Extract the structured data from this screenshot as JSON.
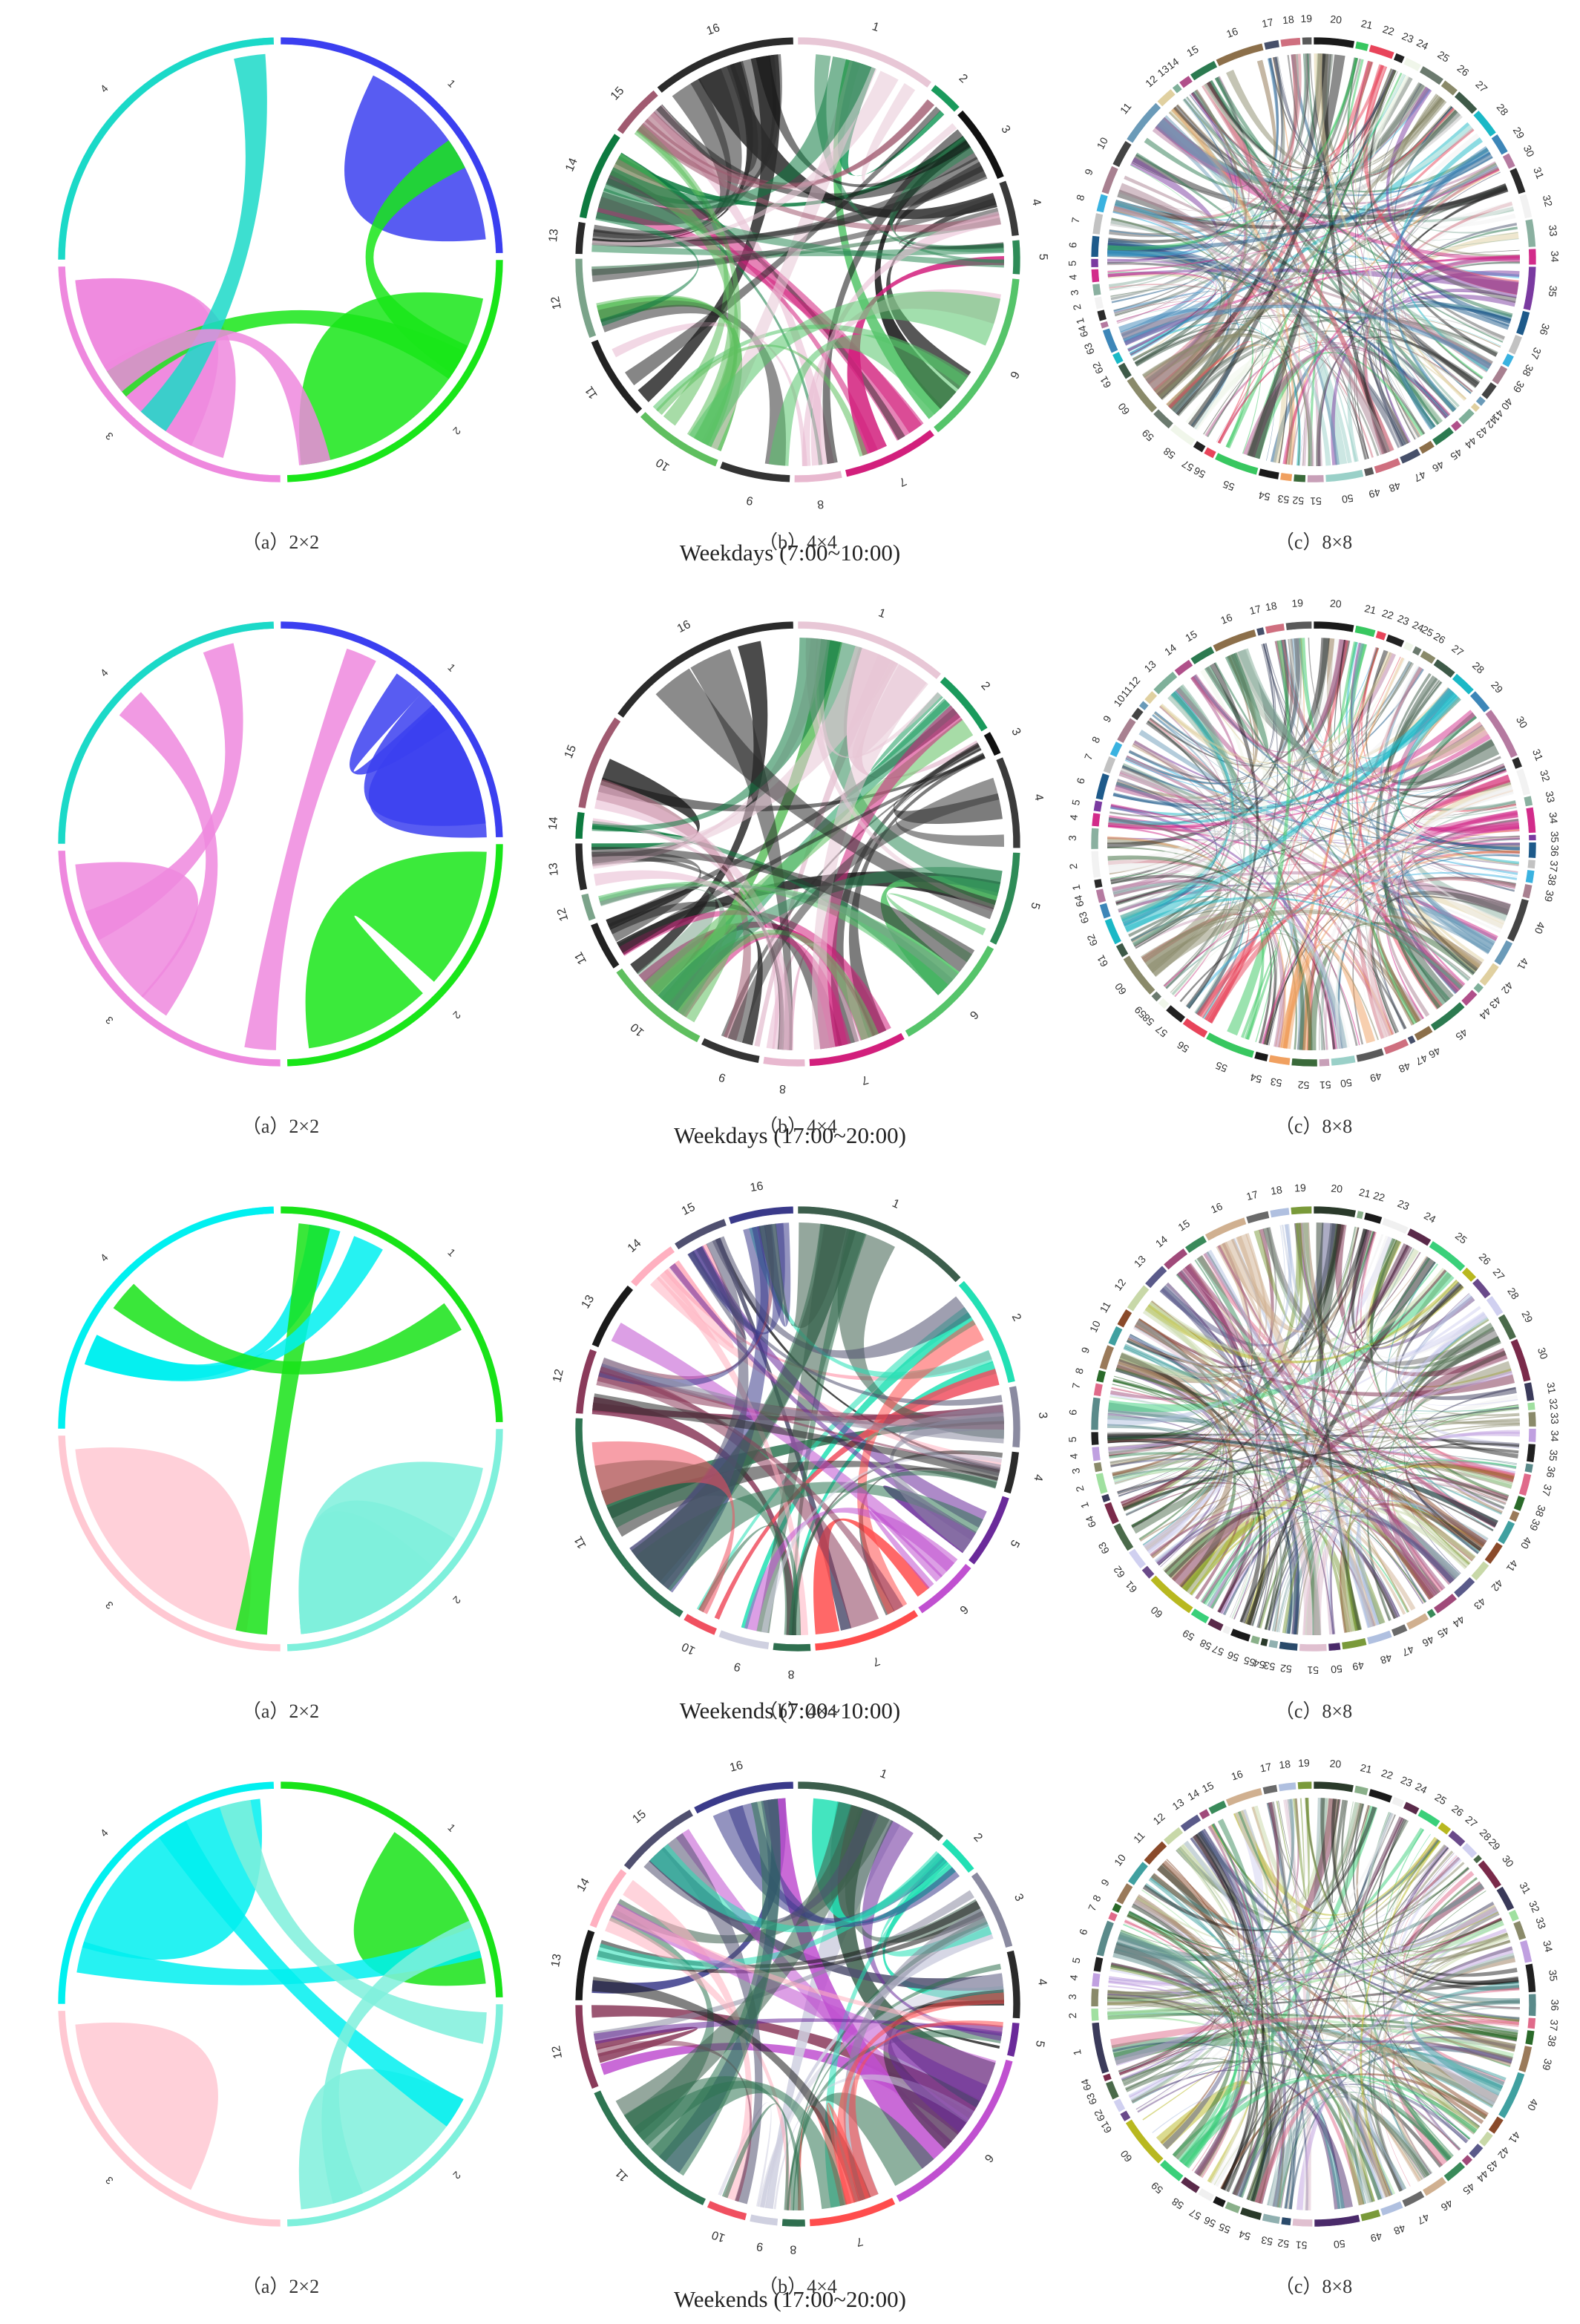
{
  "figure": {
    "rows": [
      {
        "title": "Weekdays (7:00~10:00)",
        "panels": [
          {
            "caption": "（a）2×2",
            "type": "chord",
            "segments": [
              "1",
              "2",
              "3",
              "4"
            ],
            "colors": [
              "#3b3ff0",
              "#19e619",
              "#ee88de",
              "#1bd9c8"
            ]
          },
          {
            "caption": "（b）4×4",
            "type": "chord",
            "segments": [
              "1",
              "2",
              "3",
              "4",
              "5",
              "6",
              "7",
              "8",
              "9",
              "10",
              "11",
              "12",
              "13",
              "14",
              "15",
              "16"
            ],
            "colors": [
              "#e8c7d6",
              "#1a9a5c",
              "#111111",
              "#3a3a3a",
              "#2e8b57",
              "#55c46a",
              "#d21f7c",
              "#e8b8cf",
              "#333333",
              "#5fbf5f",
              "#222222",
              "#7ba38a",
              "#2a2a2a",
              "#0d7a3f",
              "#a05a70",
              "#2b2b2b"
            ]
          },
          {
            "caption": "（c）8×8",
            "type": "chord",
            "segments": [
              "20",
              "21",
              "22",
              "23",
              "24",
              "25",
              "26",
              "27",
              "28",
              "29",
              "30",
              "31",
              "32",
              "33",
              "34",
              "35",
              "36",
              "37",
              "38",
              "39",
              "40",
              "41",
              "42",
              "43",
              "44",
              "45",
              "46",
              "47",
              "48",
              "49",
              "50",
              "51",
              "52",
              "53",
              "54",
              "55",
              "56",
              "57",
              "58",
              "59",
              "60",
              "61",
              "62",
              "63",
              "64",
              "1",
              "2",
              "3",
              "4",
              "5",
              "6",
              "7",
              "8",
              "9",
              "10",
              "11",
              "12",
              "13",
              "14",
              "15",
              "16",
              "17",
              "18",
              "19"
            ],
            "colors": [
              "#1a1a1a",
              "#38c760",
              "#e8445a",
              "#222222",
              "#f0f6ea",
              "#6b7a6e",
              "#8a8a6a",
              "#3e5a48",
              "#1ab8c6",
              "#3d86b8",
              "#b57aa0",
              "#2a2a2a",
              "#f2f2f2",
              "#8ab0a0",
              "#d22b8a",
              "#7a3aa0",
              "#1e5a8a",
              "#c2c2c2",
              "#3ab2e0",
              "#a88090",
              "#444444",
              "#6a9ab8",
              "#e0d0a0",
              "#7fb09a",
              "#b0508a",
              "#2c7a50",
              "#8c6f4a",
              "#47506a",
              "#cf6f7f",
              "#5a5a5a",
              "#9ad0c8",
              "#c8a0b8",
              "#3a6a3a",
              "#f0a060"
            ]
          }
        ]
      },
      {
        "title": "Weekdays (17:00~20:00)",
        "panels": [
          {
            "caption": "（a）2×2",
            "type": "chord",
            "segments": [
              "1",
              "2",
              "3",
              "4"
            ],
            "colors": [
              "#3b3ff0",
              "#19e619",
              "#ee88de",
              "#1bd9c8"
            ]
          },
          {
            "caption": "（b）4×4",
            "type": "chord",
            "segments": [
              "1",
              "2",
              "3",
              "4",
              "5",
              "6",
              "7",
              "8",
              "9",
              "10",
              "11",
              "12",
              "13",
              "14",
              "15",
              "16"
            ],
            "colors": [
              "#e8c7d6",
              "#1a9a5c",
              "#111111",
              "#3a3a3a",
              "#2e8b57",
              "#55c46a",
              "#d21f7c",
              "#e8b8cf",
              "#333333",
              "#5fbf5f",
              "#222222",
              "#7ba38a",
              "#2a2a2a",
              "#0d7a3f",
              "#a05a70",
              "#2b2b2b"
            ]
          },
          {
            "caption": "（c）8×8",
            "type": "chord",
            "segments": [
              "20",
              "21",
              "22",
              "23",
              "24",
              "25",
              "26",
              "27",
              "28",
              "29",
              "30",
              "31",
              "32",
              "33",
              "34",
              "35",
              "36",
              "37",
              "38",
              "39",
              "40",
              "41",
              "42",
              "43",
              "44",
              "45",
              "46",
              "47",
              "48",
              "49",
              "50",
              "51",
              "52",
              "53",
              "54",
              "55",
              "56",
              "57",
              "58",
              "59",
              "60",
              "61",
              "62",
              "63",
              "64",
              "1",
              "2",
              "3",
              "4",
              "5",
              "6",
              "7",
              "8",
              "9",
              "10",
              "11",
              "12",
              "13",
              "14",
              "15",
              "16",
              "17",
              "18",
              "19"
            ],
            "colors": [
              "#1a1a1a",
              "#38c760",
              "#e8445a",
              "#222222",
              "#f0f6ea",
              "#6b7a6e",
              "#8a8a6a",
              "#3e5a48",
              "#1ab8c6",
              "#3d86b8",
              "#b57aa0",
              "#2a2a2a",
              "#f2f2f2",
              "#8ab0a0",
              "#d22b8a",
              "#7a3aa0",
              "#1e5a8a",
              "#c2c2c2",
              "#3ab2e0",
              "#a88090",
              "#444444",
              "#6a9ab8",
              "#e0d0a0",
              "#7fb09a",
              "#b0508a",
              "#2c7a50",
              "#8c6f4a",
              "#47506a",
              "#cf6f7f",
              "#5a5a5a",
              "#9ad0c8",
              "#c8a0b8",
              "#3a6a3a",
              "#f0a060"
            ]
          }
        ]
      },
      {
        "title": "Weekends (7:00~10:00)",
        "panels": [
          {
            "caption": "（a）2×2",
            "type": "chord",
            "segments": [
              "1",
              "2",
              "3",
              "4"
            ],
            "colors": [
              "#18e318",
              "#7ff0dc",
              "#ffc8d2",
              "#00f0f0"
            ]
          },
          {
            "caption": "（b）4×4",
            "type": "chord",
            "segments": [
              "1",
              "2",
              "3",
              "4",
              "5",
              "6",
              "7",
              "8",
              "9",
              "10",
              "11",
              "12",
              "13",
              "14",
              "15",
              "16"
            ],
            "colors": [
              "#3c5e4c",
              "#22e0b4",
              "#8a8aa0",
              "#2a2a2a",
              "#6a2a9a",
              "#c050d0",
              "#ff4d4d",
              "#2f6f4f",
              "#cfd0e0",
              "#f05060",
              "#2e7552",
              "#8a3a5a",
              "#1a1a1a",
              "#ffb0c0",
              "#505070",
              "#3a3a8a"
            ]
          },
          {
            "caption": "（c）8×8",
            "type": "chord",
            "segments": [
              "20",
              "21",
              "22",
              "23",
              "24",
              "25",
              "26",
              "27",
              "28",
              "29",
              "30",
              "31",
              "32",
              "33",
              "34",
              "35",
              "36",
              "37",
              "38",
              "39",
              "40",
              "41",
              "42",
              "43",
              "44",
              "45",
              "46",
              "47",
              "48",
              "49",
              "50",
              "51",
              "52",
              "53",
              "54",
              "55",
              "56",
              "57",
              "58",
              "59",
              "60",
              "61",
              "62",
              "63",
              "64",
              "1",
              "2",
              "3",
              "4",
              "5",
              "6",
              "7",
              "8",
              "9",
              "10",
              "11",
              "12",
              "13",
              "14",
              "15",
              "16",
              "17",
              "18",
              "19"
            ],
            "colors": [
              "#2a3a2a",
              "#8ab08a",
              "#1a1a1a",
              "#f0f0f0",
              "#5a2a4a",
              "#3ad07a",
              "#b8b820",
              "#6a4a8a",
              "#d0d0f0",
              "#4a6a4a",
              "#7a2a4a",
              "#3a3a5a",
              "#a0e0a0",
              "#8a8a6a",
              "#c0a0e0",
              "#202020",
              "#5a8a8a",
              "#e06a8a",
              "#2a6a2a",
              "#9a7a5a",
              "#40a0a0",
              "#8a4a2a",
              "#c8d8a8",
              "#5a5a8a",
              "#a04a7a",
              "#3a8a5a",
              "#d0b090",
              "#6a6a6a",
              "#b0c0e0",
              "#7a9a3a",
              "#4a2a6a",
              "#e0c0d0",
              "#2a4a6a",
              "#90b0b0"
            ]
          }
        ]
      },
      {
        "title": "Weekends (17:00~20:00)",
        "panels": [
          {
            "caption": "（a）2×2",
            "type": "chord",
            "segments": [
              "1",
              "2",
              "3",
              "4"
            ],
            "colors": [
              "#18e318",
              "#7ff0dc",
              "#ffc8d2",
              "#00f0f0"
            ]
          },
          {
            "caption": "（b）4×4",
            "type": "chord",
            "segments": [
              "1",
              "2",
              "3",
              "4",
              "5",
              "6",
              "7",
              "8",
              "9",
              "10",
              "11",
              "12",
              "13",
              "14",
              "15",
              "16"
            ],
            "colors": [
              "#3c5e4c",
              "#22e0b4",
              "#8a8aa0",
              "#2a2a2a",
              "#6a2a9a",
              "#c050d0",
              "#ff4d4d",
              "#2f6f4f",
              "#cfd0e0",
              "#f05060",
              "#2e7552",
              "#8a3a5a",
              "#1a1a1a",
              "#ffb0c0",
              "#505070",
              "#3a3a8a"
            ]
          },
          {
            "caption": "（c）8×8",
            "type": "chord",
            "segments": [
              "20",
              "21",
              "22",
              "23",
              "24",
              "25",
              "26",
              "27",
              "28",
              "29",
              "30",
              "31",
              "32",
              "33",
              "34",
              "35",
              "36",
              "37",
              "38",
              "39",
              "40",
              "41",
              "42",
              "43",
              "44",
              "45",
              "46",
              "47",
              "48",
              "49",
              "50",
              "51",
              "52",
              "53",
              "54",
              "55",
              "56",
              "57",
              "58",
              "59",
              "60",
              "61",
              "62",
              "63",
              "64",
              "1",
              "2",
              "3",
              "4",
              "5",
              "6",
              "7",
              "8",
              "9",
              "10",
              "11",
              "12",
              "13",
              "14",
              "15",
              "16",
              "17",
              "18",
              "19"
            ],
            "colors": [
              "#2a3a2a",
              "#8ab08a",
              "#1a1a1a",
              "#f0f0f0",
              "#5a2a4a",
              "#3ad07a",
              "#b8b820",
              "#6a4a8a",
              "#d0d0f0",
              "#4a6a4a",
              "#7a2a4a",
              "#3a3a5a",
              "#a0e0a0",
              "#8a8a6a",
              "#c0a0e0",
              "#202020",
              "#5a8a8a",
              "#e06a8a",
              "#2a6a2a",
              "#9a7a5a",
              "#40a0a0",
              "#8a4a2a",
              "#c8d8a8",
              "#5a5a8a",
              "#a04a7a",
              "#3a8a5a",
              "#d0b090",
              "#6a6a6a",
              "#b0c0e0",
              "#7a9a3a",
              "#4a2a6a",
              "#e0c0d0",
              "#2a4a6a",
              "#90b0b0"
            ]
          }
        ]
      }
    ]
  },
  "chart_data": [
    {
      "type": "chord",
      "title": "Weekdays (7:00~10:00)",
      "subplot": "（a）2×2",
      "segments": [
        "1",
        "2",
        "3",
        "4"
      ]
    },
    {
      "type": "chord",
      "title": "Weekdays (7:00~10:00)",
      "subplot": "（b）4×4",
      "segments": [
        "1",
        "2",
        "3",
        "4",
        "5",
        "6",
        "7",
        "8",
        "9",
        "10",
        "11",
        "12",
        "13",
        "14",
        "15",
        "16"
      ]
    },
    {
      "type": "chord",
      "title": "Weekdays (7:00~10:00)",
      "subplot": "（c）8×8",
      "segments_count": 64
    },
    {
      "type": "chord",
      "title": "Weekdays (17:00~20:00)",
      "subplot": "（a）2×2",
      "segments": [
        "1",
        "2",
        "3",
        "4"
      ]
    },
    {
      "type": "chord",
      "title": "Weekdays (17:00~20:00)",
      "subplot": "（b）4×4",
      "segments": [
        "1",
        "2",
        "3",
        "4",
        "5",
        "6",
        "7",
        "8",
        "9",
        "10",
        "11",
        "12",
        "13",
        "14",
        "15",
        "16"
      ]
    },
    {
      "type": "chord",
      "title": "Weekdays (17:00~20:00)",
      "subplot": "（c）8×8",
      "segments_count": 64
    },
    {
      "type": "chord",
      "title": "Weekends (7:00~10:00)",
      "subplot": "（a）2×2",
      "segments": [
        "1",
        "2",
        "3",
        "4"
      ]
    },
    {
      "type": "chord",
      "title": "Weekends (7:00~10:00)",
      "subplot": "（b）4×4",
      "segments": [
        "1",
        "2",
        "3",
        "4",
        "5",
        "6",
        "7",
        "8",
        "9",
        "10",
        "11",
        "12",
        "13",
        "14",
        "15",
        "16"
      ]
    },
    {
      "type": "chord",
      "title": "Weekends (7:00~10:00)",
      "subplot": "（c）8×8",
      "segments_count": 64
    },
    {
      "type": "chord",
      "title": "Weekends (17:00~20:00)",
      "subplot": "（a）2×2",
      "segments": [
        "1",
        "2",
        "3",
        "4"
      ]
    },
    {
      "type": "chord",
      "title": "Weekends (17:00~20:00)",
      "subplot": "（b）4×4",
      "segments": [
        "1",
        "2",
        "3",
        "4",
        "5",
        "6",
        "7",
        "8",
        "9",
        "10",
        "11",
        "12",
        "13",
        "14",
        "15",
        "16"
      ]
    },
    {
      "type": "chord",
      "title": "Weekends (17:00~20:00)",
      "subplot": "（c）8×8",
      "segments_count": 64
    }
  ]
}
